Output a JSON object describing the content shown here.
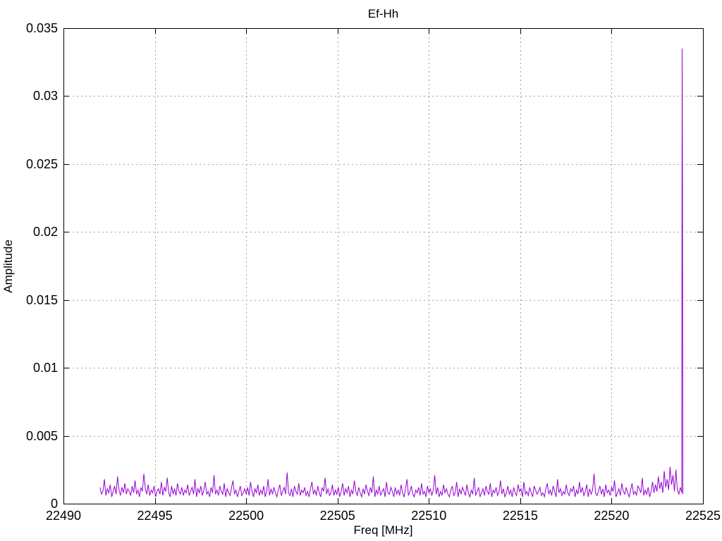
{
  "window": {
    "background": "#ffffff"
  },
  "chart_data": {
    "type": "line",
    "title": "Ef-Hh",
    "xlabel": "Freq [MHz]",
    "ylabel": "Amplitude",
    "xlim": [
      22490,
      22525
    ],
    "ylim": [
      0,
      0.035
    ],
    "grid": true,
    "line_color": "#9400d3",
    "grid_color": "#a0a0a0",
    "axis_color": "#000000",
    "xticks": [
      {
        "v": 22490,
        "label": "22490"
      },
      {
        "v": 22495,
        "label": "22495"
      },
      {
        "v": 22500,
        "label": "22500"
      },
      {
        "v": 22505,
        "label": "22505"
      },
      {
        "v": 22510,
        "label": "22510"
      },
      {
        "v": 22515,
        "label": "22515"
      },
      {
        "v": 22520,
        "label": "22520"
      },
      {
        "v": 22525,
        "label": "22525"
      }
    ],
    "yticks": [
      {
        "v": 0,
        "label": "0"
      },
      {
        "v": 0.005,
        "label": "0.005"
      },
      {
        "v": 0.01,
        "label": "0.01"
      },
      {
        "v": 0.015,
        "label": "0.015"
      },
      {
        "v": 0.02,
        "label": "0.02"
      },
      {
        "v": 0.025,
        "label": "0.025"
      },
      {
        "v": 0.03,
        "label": "0.03"
      },
      {
        "v": 0.035,
        "label": "0.035"
      }
    ],
    "series": [
      {
        "name": "Ef-Hh",
        "freq_start": 22492.0,
        "freq_step": 0.08,
        "amp_unit": 0.0001,
        "amps": [
          12,
          7,
          9,
          18,
          6,
          11,
          8,
          14,
          5,
          9,
          13,
          7,
          20,
          10,
          6,
          12,
          8,
          15,
          7,
          11,
          9,
          6,
          13,
          8,
          17,
          7,
          10,
          5,
          12,
          9,
          22,
          11,
          7,
          14,
          6,
          10,
          8,
          13,
          5,
          9,
          11,
          7,
          16,
          6,
          12,
          9,
          19,
          8,
          5,
          13,
          7,
          11,
          6,
          15,
          9,
          7,
          12,
          6,
          10,
          8,
          14,
          6,
          9,
          12,
          7,
          18,
          5,
          11,
          8,
          13,
          6,
          10,
          16,
          7,
          9,
          5,
          12,
          8,
          21,
          7,
          10,
          6,
          13,
          9,
          7,
          15,
          5,
          11,
          8,
          6,
          12,
          17,
          7,
          10,
          5,
          9,
          13,
          6,
          8,
          11,
          7,
          12,
          6,
          16,
          9,
          5,
          11,
          8,
          14,
          6,
          10,
          7,
          13,
          5,
          9,
          18,
          6,
          11,
          7,
          12,
          8,
          5,
          10,
          14,
          6,
          9,
          12,
          7,
          23,
          8,
          6,
          11,
          5,
          13,
          9,
          7,
          15,
          6,
          10,
          8,
          12,
          6,
          9,
          5,
          11,
          16,
          7,
          10,
          6,
          13,
          8,
          5,
          12,
          9,
          19,
          7,
          11,
          6,
          8,
          14,
          6,
          10,
          7,
          12,
          5,
          9,
          15,
          6,
          11,
          8,
          13,
          5,
          10,
          7,
          17,
          9,
          6,
          12,
          8,
          5,
          11,
          7,
          14,
          9,
          6,
          12,
          8,
          20,
          5,
          10,
          7,
          13,
          6,
          9,
          11,
          5,
          16,
          8,
          7,
          12,
          9,
          5,
          12,
          7,
          10,
          6,
          14,
          8,
          5,
          11,
          18,
          6,
          9,
          13,
          7,
          5,
          10,
          8,
          12,
          6,
          15,
          7,
          9,
          5,
          13,
          8,
          11,
          6,
          10,
          21,
          7,
          12,
          5,
          9,
          6,
          14,
          8,
          11,
          7,
          5,
          10,
          13,
          6,
          8,
          16,
          5,
          11,
          7,
          12,
          9,
          6,
          14,
          8,
          5,
          10,
          7,
          19,
          6,
          9,
          12,
          5,
          8,
          11,
          6,
          13,
          9,
          7,
          15,
          5,
          10,
          8,
          12,
          6,
          9,
          17,
          7,
          11,
          5,
          8,
          13,
          7,
          10,
          5,
          12,
          8,
          6,
          14,
          9,
          11,
          5,
          16,
          7,
          9,
          6,
          12,
          8,
          5,
          13,
          10,
          7,
          9,
          12,
          6,
          8,
          5,
          11,
          15,
          7,
          10,
          6,
          13,
          9,
          5,
          18,
          8,
          11,
          6,
          9,
          7,
          14,
          8,
          6,
          11,
          9,
          13,
          5,
          10,
          7,
          16,
          8,
          12,
          6,
          9,
          14,
          5,
          11,
          7,
          10,
          22,
          8,
          6,
          9,
          13,
          7,
          11,
          5,
          14,
          8,
          10,
          6,
          12,
          9,
          17,
          5,
          8,
          11,
          6,
          15,
          9,
          7,
          12,
          8,
          5,
          10,
          15,
          7,
          9,
          6,
          13,
          11,
          8,
          19,
          6,
          10,
          7,
          12,
          5,
          9,
          16,
          8,
          14,
          9,
          20,
          11,
          16,
          8,
          24,
          12,
          18,
          10,
          27,
          14,
          21,
          9,
          25
        ],
        "extra_points": [
          [
            22523.6,
            0.001
          ],
          [
            22523.68,
            0.0007
          ],
          [
            22523.76,
            0.0012
          ],
          [
            22523.84,
            0.0008
          ],
          [
            22523.86,
            0.0335
          ],
          [
            22523.88,
            0.0233
          ],
          [
            22523.9,
            0.0007
          ]
        ]
      }
    ]
  }
}
